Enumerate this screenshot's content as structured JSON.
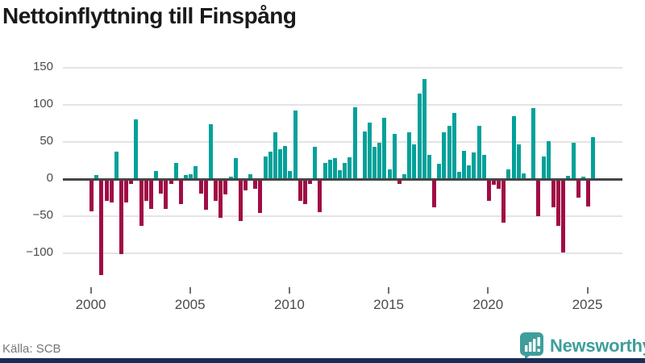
{
  "title": "Nettoinflyttning till Finspång",
  "source": "Källa: SCB",
  "brand": {
    "name": "Newsworthy",
    "icon": "bar-chart-bubble-icon"
  },
  "colors": {
    "positive": "#00a19a",
    "negative": "#a00c45",
    "grid": "#e4e4e4",
    "zero_line": "#454545",
    "axis_text": "#4a4a4a",
    "title_text": "#1a1a1a",
    "source_text": "#767676",
    "brand_teal": "#3f9e9b",
    "footer_bar": "#1b2d52"
  },
  "y_axis": {
    "ticks": [
      150,
      100,
      50,
      0,
      -50,
      -100
    ],
    "tick_labels": [
      "150",
      "100",
      "50",
      "0",
      "−50",
      "−100"
    ],
    "range": [
      -135,
      155
    ]
  },
  "x_axis": {
    "tick_years": [
      2000,
      2005,
      2010,
      2015,
      2020,
      2025
    ],
    "tick_labels": [
      "2000",
      "2005",
      "2010",
      "2015",
      "2020",
      "2025"
    ]
  },
  "chart_data": {
    "type": "bar",
    "title": "Nettoinflyttning till Finspång",
    "frequency": "quarterly",
    "start": "2000 Q1",
    "end": "2025 Q2",
    "grid": true,
    "legend": false,
    "x": [
      "2000Q1",
      "2000Q2",
      "2000Q3",
      "2000Q4",
      "2001Q1",
      "2001Q2",
      "2001Q3",
      "2001Q4",
      "2002Q1",
      "2002Q2",
      "2002Q3",
      "2002Q4",
      "2003Q1",
      "2003Q2",
      "2003Q3",
      "2003Q4",
      "2004Q1",
      "2004Q2",
      "2004Q3",
      "2004Q4",
      "2005Q1",
      "2005Q2",
      "2005Q3",
      "2005Q4",
      "2006Q1",
      "2006Q2",
      "2006Q3",
      "2006Q4",
      "2007Q1",
      "2007Q2",
      "2007Q3",
      "2007Q4",
      "2008Q1",
      "2008Q2",
      "2008Q3",
      "2008Q4",
      "2009Q1",
      "2009Q2",
      "2009Q3",
      "2009Q4",
      "2010Q1",
      "2010Q2",
      "2010Q3",
      "2010Q4",
      "2011Q1",
      "2011Q2",
      "2011Q3",
      "2011Q4",
      "2012Q1",
      "2012Q2",
      "2012Q3",
      "2012Q4",
      "2013Q1",
      "2013Q2",
      "2013Q3",
      "2013Q4",
      "2014Q1",
      "2014Q2",
      "2014Q3",
      "2014Q4",
      "2015Q1",
      "2015Q2",
      "2015Q3",
      "2015Q4",
      "2016Q1",
      "2016Q2",
      "2016Q3",
      "2016Q4",
      "2017Q1",
      "2017Q2",
      "2017Q3",
      "2017Q4",
      "2018Q1",
      "2018Q2",
      "2018Q3",
      "2018Q4",
      "2019Q1",
      "2019Q2",
      "2019Q3",
      "2019Q4",
      "2020Q1",
      "2020Q2",
      "2020Q3",
      "2020Q4",
      "2021Q1",
      "2021Q2",
      "2021Q3",
      "2021Q4",
      "2022Q1",
      "2022Q2",
      "2022Q3",
      "2022Q4",
      "2023Q1",
      "2023Q2",
      "2023Q3",
      "2023Q4",
      "2024Q1",
      "2024Q2",
      "2024Q3",
      "2024Q4",
      "2025Q1",
      "2025Q2"
    ],
    "values": [
      -43,
      6,
      -129,
      -29,
      -32,
      37,
      -101,
      -32,
      -6,
      81,
      -63,
      -29,
      -40,
      11,
      -20,
      -40,
      -6,
      22,
      -34,
      5,
      7,
      17,
      -20,
      -41,
      74,
      -29,
      -52,
      -21,
      3,
      28,
      -57,
      -15,
      7,
      -13,
      -46,
      31,
      37,
      63,
      40,
      45,
      11,
      92,
      -29,
      -34,
      -7,
      43,
      -44,
      22,
      26,
      28,
      12,
      22,
      29,
      97,
      0,
      64,
      76,
      43,
      49,
      83,
      13,
      61,
      -6,
      7,
      63,
      47,
      115,
      135,
      33,
      -38,
      21,
      63,
      72,
      89,
      10,
      38,
      18,
      36,
      72,
      33,
      -29,
      -8,
      -13,
      -59,
      13,
      85,
      47,
      8,
      0,
      96,
      -50,
      31,
      51,
      -38,
      -63,
      -99,
      4,
      49,
      -25,
      3,
      -37,
      57
    ]
  }
}
